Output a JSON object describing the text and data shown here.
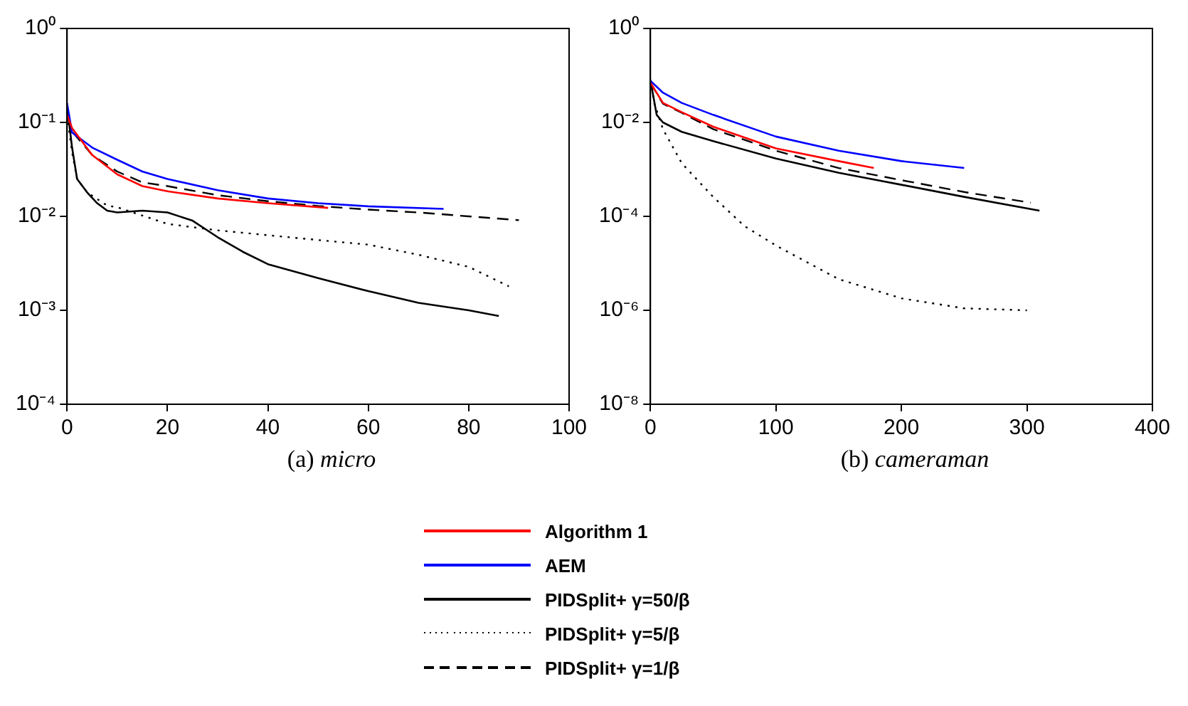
{
  "chart_data": [
    {
      "type": "line",
      "xlabel": "(a) micro",
      "log": "y",
      "grid": false,
      "legend": "bottom",
      "xlim": [
        0,
        100
      ],
      "xticks": [
        0,
        20,
        40,
        60,
        80,
        100
      ],
      "ylim": [
        0.0001,
        1
      ],
      "yticks": [
        {
          "value": 0.0001,
          "label": "10⁻⁴"
        },
        {
          "value": 0.001,
          "label": "10⁻³"
        },
        {
          "value": 0.01,
          "label": "10⁻²"
        },
        {
          "value": 0.1,
          "label": "10⁻¹"
        },
        {
          "value": 1,
          "label": "10⁰"
        }
      ],
      "series": [
        {
          "name": "Algorithm 1",
          "color": "#ff0000",
          "line_style": "solid",
          "x": [
            0,
            1,
            5,
            10,
            15,
            20,
            30,
            40,
            52
          ],
          "values": [
            0.12,
            0.087,
            0.045,
            0.028,
            0.021,
            0.0185,
            0.0155,
            0.0138,
            0.0123
          ]
        },
        {
          "name": "AEM",
          "color": "#0000ff",
          "line_style": "solid",
          "x": [
            0,
            1,
            5,
            10,
            15,
            20,
            30,
            40,
            50,
            60,
            75
          ],
          "values": [
            0.16,
            0.078,
            0.054,
            0.04,
            0.03,
            0.025,
            0.019,
            0.0155,
            0.0138,
            0.0128,
            0.012
          ]
        },
        {
          "name": "PIDSplit+ γ=50/β",
          "color": "#000000",
          "line_style": "solid",
          "x": [
            0,
            1,
            2,
            4,
            6,
            8,
            10,
            15,
            20,
            25,
            30,
            35,
            40,
            50,
            60,
            70,
            80,
            86
          ],
          "values": [
            0.15,
            0.054,
            0.025,
            0.018,
            0.0138,
            0.0115,
            0.011,
            0.0115,
            0.011,
            0.009,
            0.006,
            0.0042,
            0.0031,
            0.0022,
            0.0016,
            0.0012,
            0.001,
            0.00087
          ]
        },
        {
          "name": "PIDSplit+ γ=5/β",
          "color": "#000000",
          "line_style": "dotted",
          "x": [
            0,
            1,
            2,
            4,
            8,
            10,
            15,
            20,
            30,
            40,
            50,
            60,
            70,
            80,
            88
          ],
          "values": [
            0.12,
            0.048,
            0.025,
            0.018,
            0.013,
            0.0125,
            0.0102,
            0.0083,
            0.0071,
            0.0063,
            0.0056,
            0.005,
            0.0039,
            0.0029,
            0.0018
          ]
        },
        {
          "name": "PIDSplit+ γ=1/β",
          "color": "#000000",
          "line_style": "dashed",
          "x": [
            0,
            1,
            5,
            10,
            15,
            20,
            30,
            40,
            50,
            60,
            70,
            80,
            90
          ],
          "values": [
            0.12,
            0.08,
            0.045,
            0.03,
            0.023,
            0.021,
            0.0168,
            0.0145,
            0.0129,
            0.0118,
            0.011,
            0.01,
            0.0091
          ]
        }
      ]
    },
    {
      "type": "line",
      "xlabel": "(b) cameraman",
      "log": "y",
      "grid": false,
      "xlim": [
        0,
        400
      ],
      "xticks": [
        0,
        100,
        200,
        300,
        400
      ],
      "ylim": [
        1e-08,
        1
      ],
      "yticks": [
        {
          "value": 1e-08,
          "label": "10⁻⁸"
        },
        {
          "value": 1e-06,
          "label": "10⁻⁶"
        },
        {
          "value": 0.0001,
          "label": "10⁻⁴"
        },
        {
          "value": 0.01,
          "label": "10⁻²"
        },
        {
          "value": 1,
          "label": "10⁰"
        }
      ],
      "series": [
        {
          "color": "#ff0000",
          "line_style": "solid",
          "x": [
            0,
            10,
            25,
            50,
            100,
            150,
            178
          ],
          "values": [
            0.07,
            0.026,
            0.0165,
            0.0081,
            0.0028,
            0.0015,
            0.00107
          ]
        },
        {
          "color": "#0000ff",
          "line_style": "solid",
          "x": [
            0,
            10,
            25,
            50,
            100,
            150,
            200,
            250
          ],
          "values": [
            0.077,
            0.043,
            0.026,
            0.0145,
            0.005,
            0.0025,
            0.0015,
            0.00107
          ]
        },
        {
          "color": "#000000",
          "line_style": "solid",
          "x": [
            0,
            5,
            10,
            25,
            50,
            100,
            150,
            200,
            250,
            310
          ],
          "values": [
            0.08,
            0.0145,
            0.01,
            0.0063,
            0.004,
            0.0017,
            0.00085,
            0.00047,
            0.00026,
            0.000132
          ]
        },
        {
          "color": "#000000",
          "line_style": "dotted",
          "x": [
            0,
            3,
            10,
            25,
            50,
            75,
            100,
            150,
            200,
            250,
            300
          ],
          "values": [
            0.08,
            0.026,
            0.0072,
            0.00135,
            0.00026,
            6.2e-05,
            2.4e-05,
            4.6e-06,
            1.8e-06,
            1.1e-06,
            1e-06
          ]
        },
        {
          "color": "#000000",
          "line_style": "dashed",
          "x": [
            0,
            10,
            25,
            50,
            100,
            150,
            200,
            250,
            303
          ],
          "values": [
            0.07,
            0.025,
            0.016,
            0.0072,
            0.0025,
            0.00107,
            0.00059,
            0.00033,
            0.000195
          ]
        }
      ]
    }
  ]
}
